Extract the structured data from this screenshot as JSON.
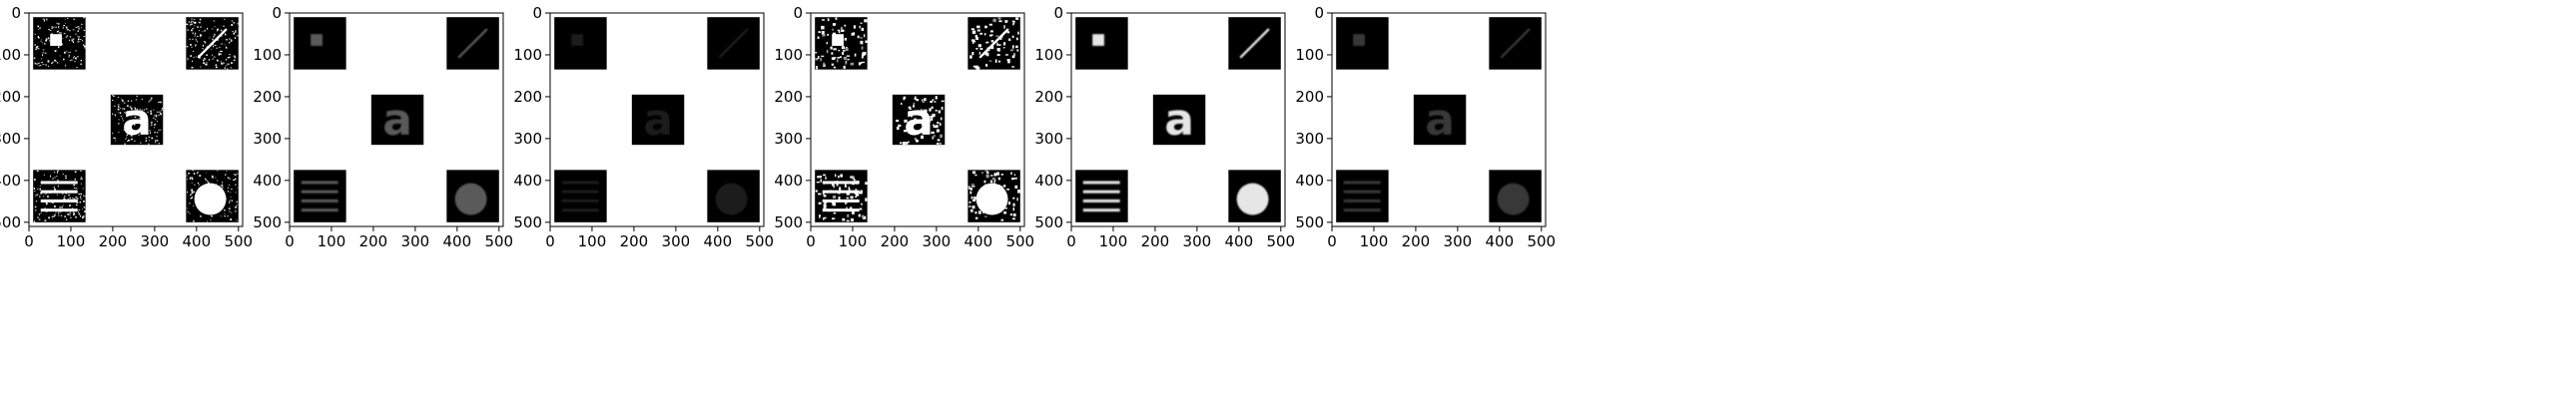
{
  "figure": {
    "panel_count": 6,
    "x_ticks": [
      "0",
      "100",
      "200",
      "300",
      "400",
      "500"
    ],
    "y_ticks": [
      "0",
      "100",
      "200",
      "300",
      "400",
      "500"
    ],
    "colors": {
      "axes_frame": "#000000",
      "panel_background": "#ffffff",
      "tile_background": "#000000"
    },
    "panels": [
      {
        "id": "panel-1",
        "shape_gray": "#ffffff",
        "noise": "salt-pepper-fine"
      },
      {
        "id": "panel-2",
        "shape_gray": "#5a5a5a",
        "noise": "none"
      },
      {
        "id": "panel-3",
        "shape_gray": "#1c1c1c",
        "noise": "none"
      },
      {
        "id": "panel-4",
        "shape_gray": "#ffffff",
        "noise": "salt-pepper-coarse"
      },
      {
        "id": "panel-5",
        "shape_gray": "#e6e6e6",
        "noise": "none"
      },
      {
        "id": "panel-6",
        "shape_gray": "#383838",
        "noise": "none"
      }
    ],
    "tile_contents": {
      "top_left": "square",
      "top_right": "diagonal-line",
      "center": "a",
      "bottom_left": "horizontal-bars",
      "bottom_right": "disk"
    }
  }
}
